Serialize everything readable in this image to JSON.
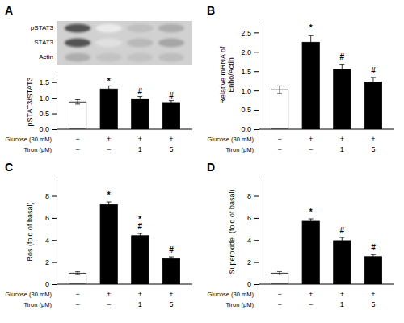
{
  "chart_data": [
    {
      "type": "blot",
      "categories": [
        "pSTAT3",
        "STAT3",
        "Actin"
      ],
      "values": [
        [
          0.68,
          0.08,
          0.25,
          0.32
        ],
        [
          0.68,
          0.12,
          0.28,
          0.35
        ],
        [
          0.32,
          0.24,
          0.24,
          0.26
        ]
      ]
    },
    {
      "type": "bar",
      "title": "A",
      "ylabel": "pSTAT3/STAT3",
      "values": [
        0.87,
        1.28,
        0.97,
        0.85
      ],
      "errors": [
        0.07,
        0.1,
        0.07,
        0.06
      ],
      "colors": [
        "white",
        "black",
        "black",
        "black"
      ],
      "ylim": [
        0,
        1.75
      ],
      "yticks": [
        {
          "value": 0,
          "label": "0.0"
        },
        0.5,
        {
          "value": 1.0,
          "label": "1.0"
        },
        1.5
      ],
      "annotations": [
        null,
        "*",
        "#",
        "#"
      ],
      "category_rows": [
        {
          "name": "Glucose (30 mM)",
          "labels": [
            "−",
            "+",
            "+",
            "+"
          ]
        },
        {
          "name": "Tiron (μM)",
          "labels": [
            "−",
            "−",
            "1",
            "5"
          ]
        }
      ]
    },
    {
      "type": "bar",
      "title": "B",
      "ylabel": "Relative mRNA of\nEnho/Actin",
      "values": [
        1.02,
        2.25,
        1.55,
        1.22
      ],
      "errors": [
        0.1,
        0.18,
        0.13,
        0.12
      ],
      "colors": [
        "white",
        "black",
        "black",
        "black"
      ],
      "ylim": [
        0,
        2.8
      ],
      "yticks": [
        {
          "value": 0,
          "label": "0.0"
        },
        0.5,
        {
          "value": 1.0,
          "label": "1.0"
        },
        1.5,
        {
          "value": 2.0,
          "label": "2.0"
        },
        2.5
      ],
      "annotations": [
        null,
        "*",
        "#",
        "#"
      ],
      "category_rows": [
        {
          "name": "Glucose (30 mM)",
          "labels": [
            "−",
            "+",
            "+",
            "+"
          ]
        },
        {
          "name": "Tiron (μM)",
          "labels": [
            "−",
            "−",
            "1",
            "5"
          ]
        }
      ]
    },
    {
      "type": "bar",
      "title": "C",
      "ylabel": "Ros (fold of basal)",
      "values": [
        1.0,
        7.2,
        4.4,
        2.3
      ],
      "errors": [
        0.12,
        0.25,
        0.2,
        0.18
      ],
      "colors": [
        "white",
        "black",
        "black",
        "black"
      ],
      "ylim": [
        0,
        9.5
      ],
      "yticks": [
        0,
        2,
        4,
        6,
        8
      ],
      "annotations": [
        null,
        "*",
        "#",
        "#"
      ],
      "annotations_upper": [
        null,
        null,
        "*",
        null
      ],
      "category_rows": [
        {
          "name": "Glucose (30 mM)",
          "labels": [
            "−",
            "+",
            "+",
            "+"
          ]
        },
        {
          "name": "Tiron (μM)",
          "labels": [
            "−",
            "−",
            "1",
            "5"
          ]
        }
      ]
    },
    {
      "type": "bar",
      "title": "D",
      "ylabel": "Superoxide  (fold of basal)",
      "values": [
        1.0,
        5.7,
        3.95,
        2.5
      ],
      "errors": [
        0.15,
        0.22,
        0.28,
        0.18
      ],
      "colors": [
        "white",
        "black",
        "black",
        "black"
      ],
      "ylim": [
        0,
        9.5
      ],
      "yticks": [
        0,
        2,
        4,
        6,
        8
      ],
      "annotations": [
        null,
        "*",
        "#",
        "#"
      ],
      "category_rows": [
        {
          "name": "Glucose (30 mM)",
          "labels": [
            "−",
            "+",
            "+",
            "+"
          ]
        },
        {
          "name": "Tiron (μM)",
          "labels": [
            "−",
            "−",
            "1",
            "5"
          ]
        }
      ]
    }
  ]
}
